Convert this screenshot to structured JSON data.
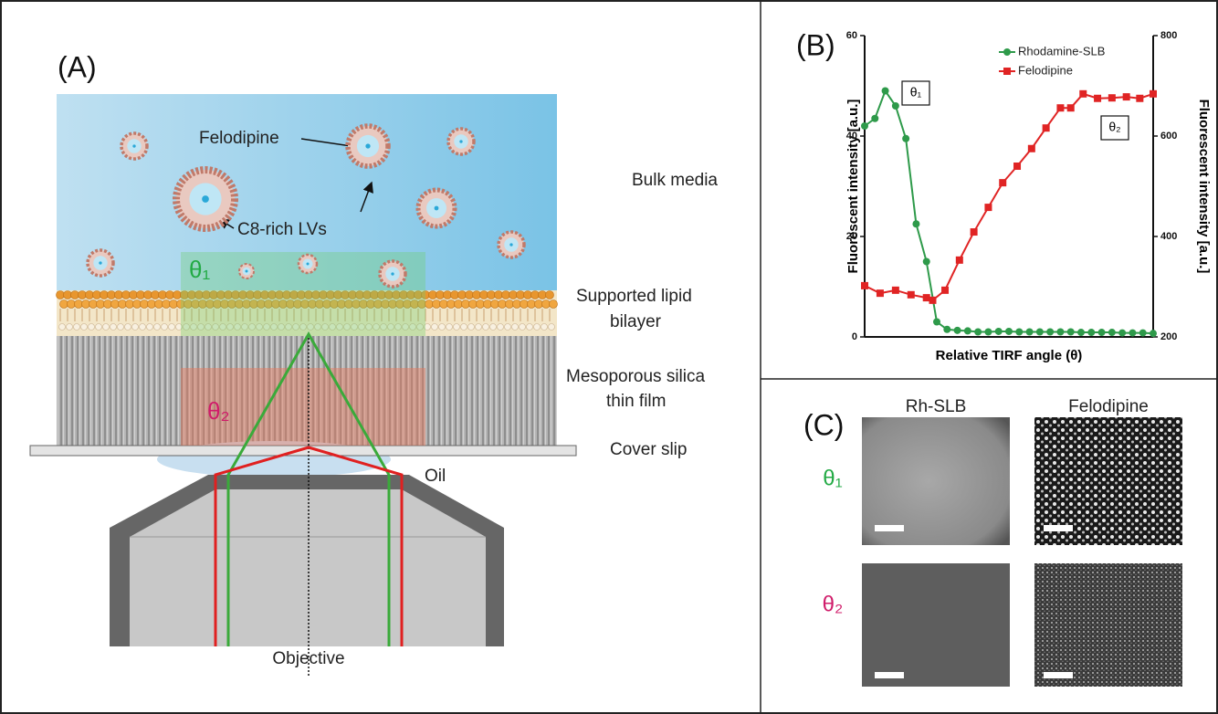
{
  "panel_a": {
    "label": "(A)",
    "felodipine": "Felodipine",
    "lvs": "C8-rich LVs",
    "theta1": "θ₁",
    "theta2": "θ₂",
    "layers": {
      "bulk": "Bulk media",
      "slb": [
        "Supported lipid",
        "bilayer"
      ],
      "silica": [
        "Mesoporous silica",
        "thin film"
      ],
      "cover": "Cover slip",
      "oil": "Oil"
    },
    "objective": "Objective"
  },
  "chart_data": {
    "type": "line",
    "label": "(B)",
    "xlabel": "Relative TIRF angle (θ)",
    "ylabel": "Fluorescent intensity [a.u.]",
    "y2label": "Fluorescent intensity [a.u.]",
    "xlim": [
      0,
      28
    ],
    "ylim": [
      0,
      60
    ],
    "yticks": [
      0,
      20,
      40,
      60
    ],
    "y2lim": [
      200,
      800
    ],
    "y2ticks": [
      200,
      400,
      600,
      800
    ],
    "annotations": [
      "θ₁",
      "θ₂"
    ],
    "series": [
      {
        "name": "Rhodamine-SLB",
        "color": "#2e9a4a",
        "marker": "circle",
        "axis": "y",
        "x": [
          0,
          1,
          2,
          3,
          4,
          5,
          6,
          7,
          8,
          9,
          10,
          11,
          12,
          13,
          14,
          15,
          16,
          17,
          18,
          19,
          20,
          21,
          22,
          23,
          24,
          25,
          26,
          27,
          28
        ],
        "values": [
          42,
          43.5,
          49,
          46,
          39.5,
          22.5,
          15,
          3,
          1.5,
          1.3,
          1.2,
          1,
          1,
          1.1,
          1.1,
          1,
          1,
          1,
          1,
          1,
          1,
          0.9,
          0.9,
          0.9,
          0.9,
          0.8,
          0.8,
          0.8,
          0.7
        ]
      },
      {
        "name": "Felodipine",
        "color": "#e02424",
        "marker": "square",
        "axis": "y2",
        "x": [
          0,
          1.5,
          3,
          4.5,
          6,
          6.6,
          7.8,
          9.2,
          10.6,
          12,
          13.4,
          14.8,
          16.2,
          17.6,
          19,
          20,
          21.2,
          22.6,
          24,
          25.4,
          26.7,
          28
        ],
        "values": [
          302,
          287,
          293,
          284,
          278,
          273,
          293,
          353,
          409,
          458,
          507,
          540,
          575,
          616,
          656,
          656,
          684,
          675,
          676,
          678,
          675,
          684
        ]
      }
    ]
  },
  "panel_c": {
    "label": "(C)",
    "columns": [
      "Rh-SLB",
      "Felodipine"
    ],
    "rows": [
      "θ₁",
      "θ₂"
    ]
  }
}
